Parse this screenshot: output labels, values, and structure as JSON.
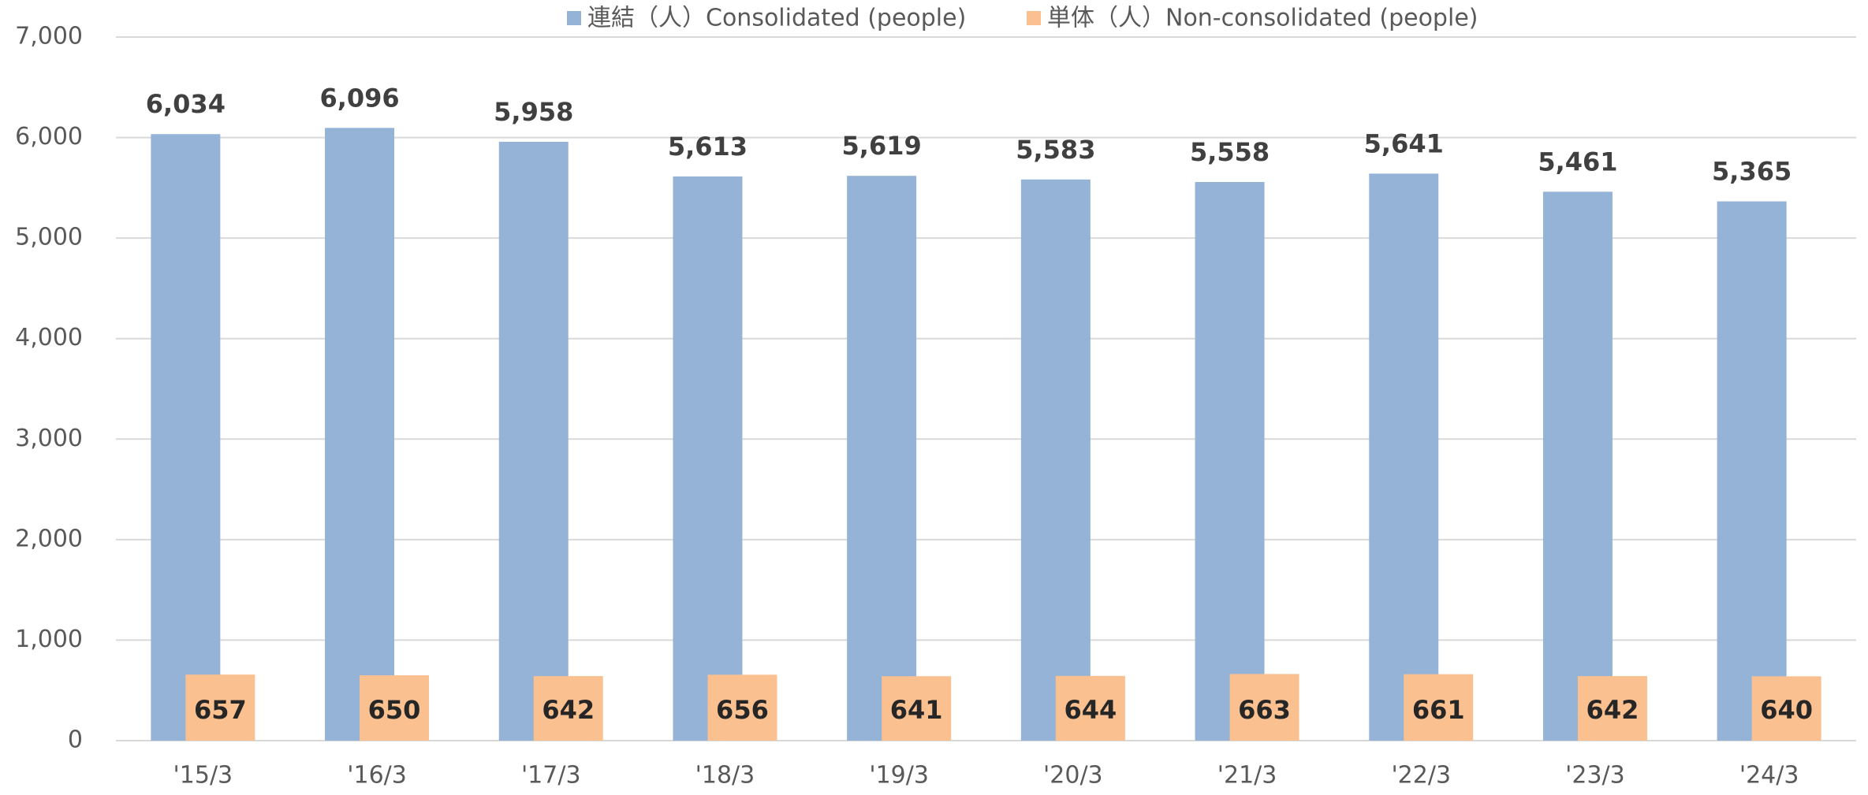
{
  "chart_data": {
    "type": "bar",
    "categories": [
      "'15/3",
      "'16/3",
      "'17/3",
      "'18/3",
      "'19/3",
      "'20/3",
      "'21/3",
      "'22/3",
      "'23/3",
      "'24/3"
    ],
    "series": [
      {
        "name": "連結（人）Consolidated (people)",
        "color": "#95b3d7",
        "values": [
          6034,
          6096,
          5958,
          5613,
          5619,
          5583,
          5558,
          5641,
          5461,
          5365
        ],
        "value_labels": [
          "6,034",
          "6,096",
          "5,958",
          "5,613",
          "5,619",
          "5,583",
          "5,558",
          "5,641",
          "5,461",
          "5,365"
        ]
      },
      {
        "name": "単体（人）Non-consolidated (people)",
        "color": "#fac090",
        "values": [
          657,
          650,
          642,
          656,
          641,
          644,
          663,
          661,
          642,
          640
        ]
      }
    ],
    "ylim": [
      0,
      7000
    ],
    "yticks": [
      0,
      {
        "value": 1000,
        "label": "1,000"
      },
      {
        "value": 2000,
        "label": "2,000"
      },
      {
        "value": 3000,
        "label": "3,000"
      },
      {
        "value": 4000,
        "label": "4,000"
      },
      {
        "value": 5000,
        "label": "5,000"
      },
      {
        "value": 6000,
        "label": "6,000"
      },
      {
        "value": 7000,
        "label": "7,000"
      }
    ],
    "grid": true,
    "legend": "top"
  }
}
